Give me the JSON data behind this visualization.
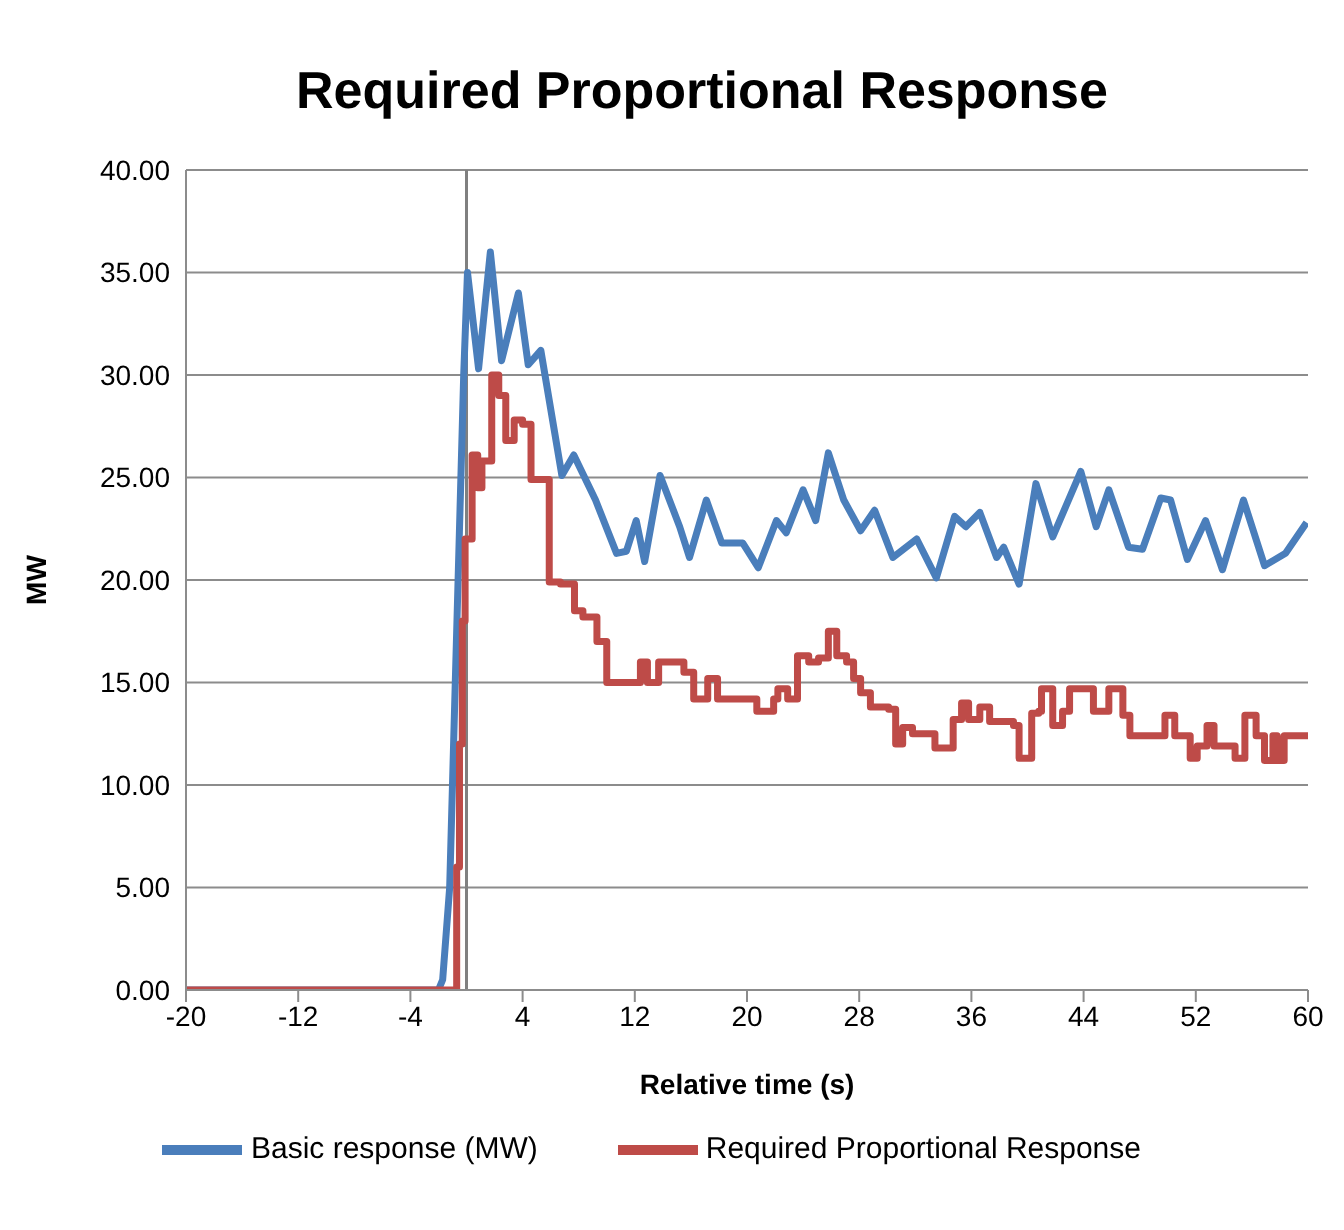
{
  "chart_data": {
    "type": "line",
    "title": "Required Proportional Response",
    "xlabel": "Relative time (s)",
    "ylabel": "MW",
    "xlim": [
      -20,
      60
    ],
    "xticks": [
      -20,
      -12,
      -4,
      4,
      12,
      20,
      28,
      36,
      44,
      52,
      60
    ],
    "ylim": [
      0,
      40
    ],
    "yticks": [
      {
        "value": 0,
        "label": "0.00"
      },
      {
        "value": 5,
        "label": "5.00"
      },
      {
        "value": 10,
        "label": "10.00"
      },
      {
        "value": 15,
        "label": "15.00"
      },
      {
        "value": 20,
        "label": "20.00"
      },
      {
        "value": 25,
        "label": "25.00"
      },
      {
        "value": 30,
        "label": "30.00"
      },
      {
        "value": 35,
        "label": "35.00"
      },
      {
        "value": 40,
        "label": "40.00"
      }
    ],
    "grid": "y",
    "legend": "bottom",
    "marker": "none",
    "line_style": "solid",
    "ref_lines": [
      {
        "axis": "x",
        "value": 0,
        "color": "#808080"
      }
    ],
    "series": [
      {
        "name": "Basic response (MW)",
        "color": "#4a7ebb",
        "x": [
          -20,
          -2,
          -1.7,
          -1.2,
          -0.6,
          -0.2,
          0.07,
          0.86,
          1.7,
          2.5,
          3.7,
          4.4,
          5.3,
          6.8,
          7.65,
          9.2,
          10.7,
          11.4,
          12.1,
          12.7,
          13.8,
          15.2,
          15.9,
          17.1,
          18.2,
          19.7,
          20.8,
          22.1,
          22.8,
          24.0,
          24.9,
          25.8,
          26.9,
          28.1,
          29.1,
          30.4,
          32.1,
          33.5,
          34.8,
          35.6,
          36.6,
          37.8,
          38.3,
          39.4,
          40.6,
          41.8,
          43.8,
          44.9,
          45.8,
          47.2,
          48.2,
          49.5,
          50.2,
          51.4,
          52.7,
          53.9,
          55.4,
          56.9,
          58.4,
          59.9
        ],
        "values": [
          0,
          0,
          0.5,
          5,
          20,
          30,
          35,
          30.3,
          36,
          30.7,
          34,
          30.5,
          31.2,
          25.1,
          26.1,
          23.9,
          21.3,
          21.4,
          22.9,
          20.9,
          25.1,
          22.6,
          21.1,
          23.9,
          21.8,
          21.8,
          20.6,
          22.9,
          22.3,
          24.4,
          22.9,
          26.2,
          23.9,
          22.4,
          23.4,
          21.1,
          22,
          20.1,
          23.1,
          22.6,
          23.3,
          21.1,
          21.6,
          19.8,
          24.7,
          22.1,
          25.3,
          22.6,
          24.4,
          21.6,
          21.5,
          24,
          23.9,
          21,
          22.9,
          20.5,
          23.9,
          20.7,
          21.3,
          22.8
        ]
      },
      {
        "name": "Required Proportional Response",
        "color": "#be4b48",
        "type": "step",
        "x": [
          -20,
          -1,
          -0.7,
          -0.5,
          -0.3,
          -0.1,
          0.4,
          0.8,
          1.1,
          1.8,
          2.3,
          2.8,
          3.4,
          4.0,
          4.6,
          5.9,
          6.7,
          7.7,
          8.3,
          9.3,
          10.0,
          10.5,
          12.4,
          12.9,
          13.7,
          15.5,
          16.2,
          17.2,
          17.9,
          20.4,
          20.7,
          21.9,
          22.2,
          22.9,
          23.6,
          24.4,
          25.1,
          25.8,
          26.4,
          27.1,
          27.6,
          28.1,
          28.8,
          30.1,
          30.6,
          31.1,
          31.8,
          33.4,
          34.3,
          34.7,
          35.3,
          35.8,
          36.6,
          37.3,
          39.0,
          39.4,
          40.3,
          40.8,
          41.0,
          41.8,
          42.5,
          43.0,
          44.7,
          45.8,
          46.8,
          47.3,
          49.8,
          50.5,
          51.6,
          52.1,
          52.8,
          53.3,
          54.8,
          55.5,
          56.3,
          56.9,
          57.5,
          57.8,
          58.3,
          60
        ],
        "values": [
          0,
          0,
          6,
          12,
          18,
          22,
          26.1,
          24.5,
          25.8,
          30,
          29,
          26.8,
          27.8,
          27.6,
          24.9,
          19.9,
          19.8,
          18.5,
          18.2,
          17,
          15,
          15,
          16,
          15,
          16,
          15.5,
          14.2,
          15.2,
          14.2,
          14.2,
          13.6,
          14.2,
          14.7,
          14.2,
          16.3,
          16,
          16.2,
          17.5,
          16.3,
          16,
          15.2,
          14.5,
          13.8,
          13.7,
          12,
          12.8,
          12.5,
          11.8,
          11.8,
          13.2,
          14,
          13.2,
          13.8,
          13.1,
          12.9,
          11.3,
          13.5,
          13.6,
          14.7,
          12.9,
          13.6,
          14.7,
          13.6,
          14.7,
          13.4,
          12.4,
          13.4,
          12.4,
          11.3,
          11.9,
          12.9,
          11.9,
          11.3,
          13.4,
          12.4,
          11.2,
          12.4,
          11.2,
          12.4,
          12.4
        ]
      }
    ]
  }
}
